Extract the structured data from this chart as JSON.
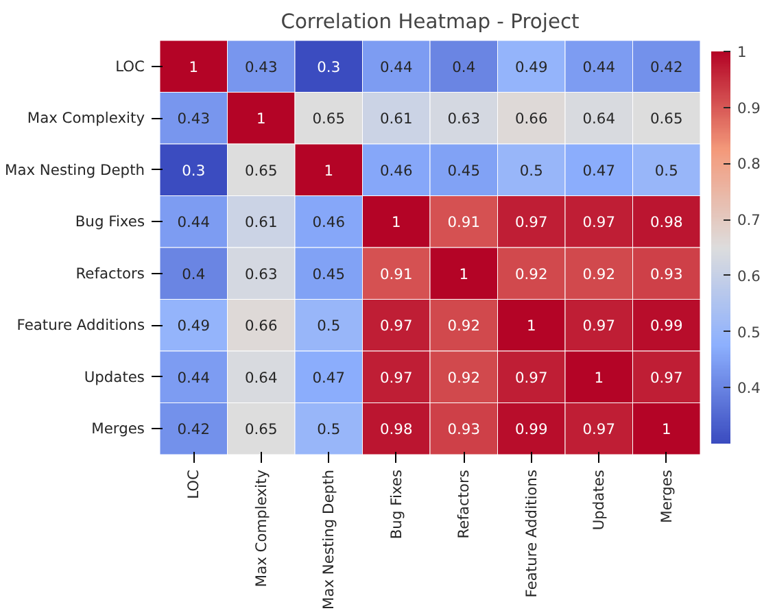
{
  "chart_data": {
    "type": "heatmap",
    "title": "Correlation Heatmap - Project",
    "categories": [
      "LOC",
      "Max Complexity",
      "Max Nesting Depth",
      "Bug Fixes",
      "Refactors",
      "Feature Additions",
      "Updates",
      "Merges"
    ],
    "y_categories": [
      "LOC",
      "Max Complexity",
      "Max Nesting Depth",
      "Bug Fixes",
      "Refactors",
      "Feature Additions",
      "Updates",
      "Merges"
    ],
    "cells": [
      [
        1,
        0.43,
        0.3,
        0.44,
        0.4,
        0.49,
        0.44,
        0.42
      ],
      [
        0.43,
        1,
        0.65,
        0.61,
        0.63,
        0.66,
        0.64,
        0.65
      ],
      [
        0.3,
        0.65,
        1,
        0.46,
        0.45,
        0.5,
        0.47,
        0.5
      ],
      [
        0.44,
        0.61,
        0.46,
        1,
        0.91,
        0.97,
        0.97,
        0.98
      ],
      [
        0.4,
        0.63,
        0.45,
        0.91,
        1,
        0.92,
        0.92,
        0.93
      ],
      [
        0.49,
        0.66,
        0.5,
        0.97,
        0.92,
        1,
        0.97,
        0.99
      ],
      [
        0.44,
        0.64,
        0.47,
        0.97,
        0.92,
        0.97,
        1,
        0.97
      ],
      [
        0.42,
        0.65,
        0.5,
        0.98,
        0.93,
        0.99,
        0.97,
        1
      ]
    ],
    "data_labels": true,
    "clim": [
      0.3,
      1.0
    ],
    "cticks": [
      0.4,
      0.5,
      0.6,
      0.7,
      0.8,
      0.9,
      1.0
    ]
  }
}
